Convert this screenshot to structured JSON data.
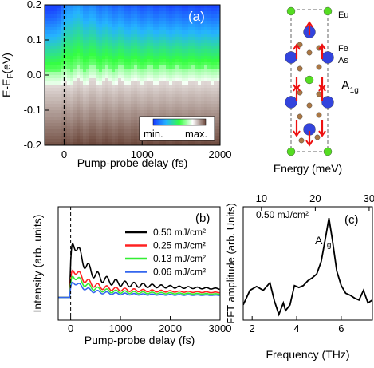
{
  "chart_data": [
    {
      "panel": "(a)",
      "type": "heatmap",
      "xlabel": "Pump-probe delay (fs)",
      "ylabel": "E-EF(eV)",
      "xlim": [
        -250,
        2000
      ],
      "ylim": [
        -0.2,
        0.2
      ],
      "x_ticks": [
        "0",
        "1000",
        "2000"
      ],
      "y_ticks": [
        "0.2",
        "0.1",
        "0.0",
        "-0.1",
        "-0.2"
      ],
      "colorbar": {
        "min_label": "min.",
        "max_label": "max.",
        "colors": [
          "#1a3cff",
          "#25b4ff",
          "#35ff40",
          "#ffffff",
          "#6e4a3e"
        ]
      },
      "zero_line_x": 0,
      "fermi_edge_eV": -0.01,
      "oscillation_freq_THz": 5.5
    },
    {
      "panel": "crystal",
      "type": "diagram",
      "atom_labels": [
        "Eu",
        "Fe",
        "As"
      ],
      "mode_label": "A1g",
      "colors": {
        "eu": "#55dd22",
        "fe": "#3344dd",
        "as": "#aa7744",
        "arrow": "#ee1111"
      }
    },
    {
      "panel": "(b)",
      "type": "line",
      "xlabel": "Pump-probe delay (fs)",
      "ylabel": "Intensity (arb. units)",
      "xlim": [
        -250,
        3000
      ],
      "x_ticks": [
        "0",
        "1000",
        "2000",
        "3000"
      ],
      "zero_line_x": 0,
      "oscillation_freq_THz": 5.5,
      "series": [
        {
          "name": "0.50 mJ/cm²",
          "color": "#000000",
          "baseline": 0.2,
          "peak": 0.84,
          "plateau": 0.34,
          "osc": 0.06
        },
        {
          "name": "0.25 mJ/cm²",
          "color": "#ff2222",
          "baseline": 0.2,
          "peak": 0.52,
          "plateau": 0.28,
          "osc": 0.035
        },
        {
          "name": "0.13 mJ/cm²",
          "color": "#33ee33",
          "baseline": 0.2,
          "peak": 0.45,
          "plateau": 0.255,
          "osc": 0.028
        },
        {
          "name": "0.06 mJ/cm²",
          "color": "#3366ee",
          "baseline": 0.2,
          "peak": 0.38,
          "plateau": 0.235,
          "osc": 0.02
        }
      ]
    },
    {
      "panel": "(c)",
      "type": "line",
      "annotation": "0.50 mJ/cm²",
      "peak_label": "A1g",
      "xlabel": "Frequency (THz)",
      "ylabel": "FFT amplitude (arb. Units)",
      "x2label": "Energy (meV)",
      "xlim": [
        1.6,
        7.4
      ],
      "x_ticks": [
        "2",
        "4",
        "6"
      ],
      "x2_ticks": [
        "10",
        "20",
        "30"
      ],
      "series": [
        {
          "x": [
            1.6,
            1.9,
            2.2,
            2.5,
            2.8,
            3.0,
            3.2,
            3.4,
            3.5,
            3.7,
            3.9,
            4.1,
            4.3,
            4.5,
            4.7,
            4.9,
            5.1,
            5.3,
            5.45,
            5.6,
            5.8,
            6.0,
            6.2,
            6.4,
            6.6,
            6.8,
            7.0,
            7.2,
            7.4
          ],
          "y": [
            0.1,
            0.25,
            0.29,
            0.25,
            0.33,
            0.14,
            0.0,
            0.12,
            0.04,
            0.1,
            0.3,
            0.28,
            0.3,
            0.35,
            0.38,
            0.42,
            0.55,
            0.8,
            1.0,
            0.78,
            0.45,
            0.3,
            0.22,
            0.2,
            0.17,
            0.15,
            0.25,
            0.12,
            0.15
          ]
        }
      ]
    }
  ]
}
